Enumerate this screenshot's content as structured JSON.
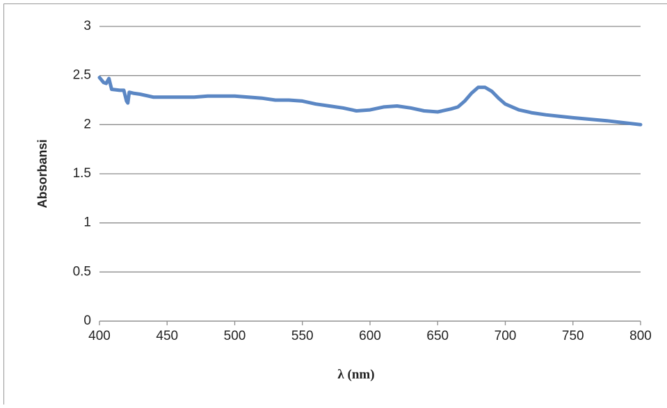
{
  "chart_data": {
    "type": "line",
    "x_label": "λ (nm)",
    "y_label": "Absorbansi",
    "x": [
      400,
      403,
      405,
      407,
      409,
      415,
      418,
      420,
      421,
      422,
      425,
      430,
      440,
      450,
      460,
      470,
      480,
      500,
      510,
      520,
      530,
      540,
      550,
      560,
      570,
      580,
      590,
      600,
      610,
      620,
      630,
      640,
      650,
      660,
      665,
      670,
      675,
      680,
      685,
      690,
      695,
      700,
      710,
      720,
      730,
      750,
      775,
      800
    ],
    "values": [
      2.48,
      2.43,
      2.42,
      2.47,
      2.36,
      2.35,
      2.35,
      2.24,
      2.22,
      2.33,
      2.32,
      2.31,
      2.28,
      2.28,
      2.28,
      2.28,
      2.29,
      2.29,
      2.28,
      2.27,
      2.25,
      2.25,
      2.24,
      2.21,
      2.19,
      2.17,
      2.14,
      2.15,
      2.18,
      2.19,
      2.17,
      2.14,
      2.13,
      2.16,
      2.18,
      2.24,
      2.32,
      2.38,
      2.38,
      2.34,
      2.27,
      2.21,
      2.15,
      2.12,
      2.1,
      2.07,
      2.04,
      2.0
    ],
    "color": "#5b87c4",
    "xlim": [
      400,
      800
    ],
    "xticks": [
      400,
      450,
      500,
      550,
      600,
      650,
      700,
      750,
      800
    ],
    "ylim": [
      0,
      3
    ],
    "yticks": [
      0,
      0.5,
      1,
      1.5,
      2,
      2.5,
      3
    ],
    "grid": true
  }
}
